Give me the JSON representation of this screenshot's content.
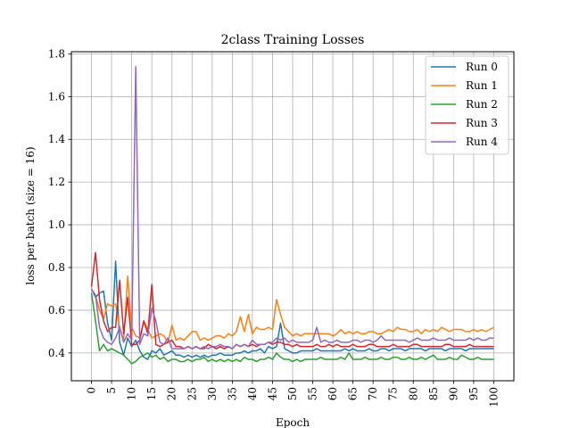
{
  "chart_data": {
    "type": "line",
    "title": "2class Training Losses",
    "xlabel": "Epoch",
    "ylabel": "loss per batch (size = 16)",
    "xlim": [
      -5,
      105
    ],
    "ylim": [
      0.27,
      1.81
    ],
    "xticks": [
      0,
      5,
      10,
      15,
      20,
      25,
      30,
      35,
      40,
      45,
      50,
      55,
      60,
      65,
      70,
      75,
      80,
      85,
      90,
      95,
      100
    ],
    "yticks": [
      0.4,
      0.6,
      0.8,
      1.0,
      1.2,
      1.4,
      1.6,
      1.8
    ],
    "ytick_labels": [
      "0.4",
      "0.6",
      "0.8",
      "1.0",
      "1.2",
      "1.4",
      "1.6",
      "1.8"
    ],
    "grid": true,
    "legend_position": "top-right",
    "series": [
      {
        "name": "Run 0",
        "color": "#1f77b4",
        "values": [
          0.7,
          0.66,
          0.68,
          0.69,
          0.54,
          0.46,
          0.83,
          0.45,
          0.39,
          0.47,
          0.43,
          0.46,
          0.41,
          0.38,
          0.37,
          0.41,
          0.4,
          0.42,
          0.39,
          0.4,
          0.41,
          0.39,
          0.39,
          0.38,
          0.39,
          0.38,
          0.39,
          0.38,
          0.39,
          0.38,
          0.39,
          0.39,
          0.4,
          0.39,
          0.39,
          0.39,
          0.4,
          0.4,
          0.41,
          0.4,
          0.41,
          0.41,
          0.42,
          0.4,
          0.43,
          0.42,
          0.43,
          0.54,
          0.42,
          0.41,
          0.4,
          0.4,
          0.41,
          0.41,
          0.41,
          0.41,
          0.42,
          0.41,
          0.41,
          0.41,
          0.41,
          0.41,
          0.41,
          0.42,
          0.41,
          0.42,
          0.41,
          0.41,
          0.41,
          0.42,
          0.41,
          0.41,
          0.42,
          0.42,
          0.41,
          0.42,
          0.42,
          0.42,
          0.41,
          0.42,
          0.42,
          0.42,
          0.42,
          0.41,
          0.42,
          0.42,
          0.42,
          0.42,
          0.41,
          0.42,
          0.42,
          0.42,
          0.42,
          0.41,
          0.42,
          0.42,
          0.42,
          0.42,
          0.42,
          0.42,
          0.42
        ]
      },
      {
        "name": "Run 1",
        "color": "#ff7f0e",
        "values": [
          0.7,
          0.67,
          0.6,
          0.56,
          0.63,
          0.62,
          0.63,
          0.52,
          0.46,
          0.76,
          0.52,
          0.48,
          0.47,
          0.55,
          0.51,
          0.47,
          0.48,
          0.49,
          0.48,
          0.45,
          0.53,
          0.46,
          0.47,
          0.46,
          0.48,
          0.5,
          0.5,
          0.46,
          0.47,
          0.46,
          0.47,
          0.48,
          0.48,
          0.47,
          0.49,
          0.48,
          0.5,
          0.57,
          0.5,
          0.58,
          0.49,
          0.52,
          0.51,
          0.51,
          0.52,
          0.51,
          0.65,
          0.58,
          0.52,
          0.5,
          0.48,
          0.49,
          0.48,
          0.49,
          0.49,
          0.49,
          0.49,
          0.49,
          0.49,
          0.49,
          0.48,
          0.49,
          0.51,
          0.49,
          0.5,
          0.49,
          0.5,
          0.49,
          0.49,
          0.5,
          0.5,
          0.49,
          0.49,
          0.5,
          0.51,
          0.5,
          0.52,
          0.51,
          0.51,
          0.5,
          0.5,
          0.51,
          0.49,
          0.51,
          0.5,
          0.51,
          0.5,
          0.52,
          0.51,
          0.5,
          0.51,
          0.51,
          0.51,
          0.5,
          0.5,
          0.51,
          0.5,
          0.51,
          0.5,
          0.51,
          0.52
        ]
      },
      {
        "name": "Run 2",
        "color": "#2ca02c",
        "values": [
          0.68,
          0.55,
          0.41,
          0.44,
          0.41,
          0.42,
          0.41,
          0.4,
          0.39,
          0.37,
          0.35,
          0.36,
          0.38,
          0.39,
          0.4,
          0.38,
          0.39,
          0.37,
          0.38,
          0.36,
          0.37,
          0.37,
          0.36,
          0.36,
          0.37,
          0.36,
          0.37,
          0.37,
          0.38,
          0.36,
          0.37,
          0.36,
          0.37,
          0.36,
          0.37,
          0.36,
          0.37,
          0.36,
          0.38,
          0.37,
          0.37,
          0.36,
          0.37,
          0.37,
          0.38,
          0.37,
          0.4,
          0.38,
          0.37,
          0.37,
          0.36,
          0.37,
          0.36,
          0.37,
          0.37,
          0.37,
          0.37,
          0.38,
          0.37,
          0.37,
          0.37,
          0.37,
          0.38,
          0.37,
          0.4,
          0.37,
          0.37,
          0.37,
          0.38,
          0.37,
          0.37,
          0.37,
          0.38,
          0.37,
          0.37,
          0.38,
          0.38,
          0.37,
          0.37,
          0.38,
          0.37,
          0.37,
          0.38,
          0.37,
          0.38,
          0.39,
          0.37,
          0.37,
          0.37,
          0.38,
          0.37,
          0.37,
          0.39,
          0.38,
          0.37,
          0.37,
          0.38,
          0.37,
          0.37,
          0.37,
          0.37
        ]
      },
      {
        "name": "Run 3",
        "color": "#d62728",
        "values": [
          0.71,
          0.87,
          0.65,
          0.55,
          0.5,
          0.52,
          0.52,
          0.74,
          0.49,
          0.66,
          0.44,
          0.44,
          0.46,
          0.55,
          0.49,
          0.72,
          0.44,
          0.43,
          0.44,
          0.45,
          0.46,
          0.43,
          0.43,
          0.42,
          0.43,
          0.42,
          0.43,
          0.42,
          0.42,
          0.44,
          0.43,
          0.42,
          0.43,
          0.42,
          0.43,
          0.42,
          0.44,
          0.43,
          0.44,
          0.43,
          0.44,
          0.43,
          0.44,
          0.44,
          0.45,
          0.44,
          0.45,
          0.45,
          0.44,
          0.44,
          0.43,
          0.44,
          0.43,
          0.43,
          0.43,
          0.43,
          0.44,
          0.43,
          0.43,
          0.44,
          0.43,
          0.44,
          0.43,
          0.43,
          0.43,
          0.44,
          0.43,
          0.43,
          0.43,
          0.44,
          0.44,
          0.43,
          0.43,
          0.43,
          0.43,
          0.44,
          0.43,
          0.43,
          0.43,
          0.43,
          0.44,
          0.44,
          0.43,
          0.43,
          0.43,
          0.43,
          0.43,
          0.43,
          0.44,
          0.44,
          0.43,
          0.43,
          0.43,
          0.43,
          0.44,
          0.43,
          0.43,
          0.43,
          0.43,
          0.43,
          0.43
        ]
      },
      {
        "name": "Run 4",
        "color": "#9467bd",
        "values": [
          0.7,
          0.67,
          0.52,
          0.47,
          0.45,
          0.44,
          0.47,
          0.52,
          0.45,
          0.49,
          0.46,
          1.74,
          0.44,
          0.49,
          0.48,
          0.61,
          0.55,
          0.45,
          0.44,
          0.47,
          0.42,
          0.42,
          0.42,
          0.42,
          0.43,
          0.42,
          0.43,
          0.42,
          0.43,
          0.42,
          0.43,
          0.43,
          0.44,
          0.43,
          0.43,
          0.42,
          0.44,
          0.43,
          0.44,
          0.43,
          0.46,
          0.44,
          0.44,
          0.44,
          0.45,
          0.45,
          0.47,
          0.46,
          0.47,
          0.45,
          0.46,
          0.45,
          0.45,
          0.45,
          0.45,
          0.46,
          0.52,
          0.45,
          0.46,
          0.45,
          0.45,
          0.46,
          0.45,
          0.45,
          0.45,
          0.46,
          0.46,
          0.45,
          0.46,
          0.46,
          0.45,
          0.46,
          0.48,
          0.46,
          0.46,
          0.46,
          0.46,
          0.46,
          0.46,
          0.45,
          0.46,
          0.47,
          0.46,
          0.46,
          0.46,
          0.47,
          0.46,
          0.46,
          0.46,
          0.47,
          0.46,
          0.46,
          0.46,
          0.46,
          0.47,
          0.46,
          0.47,
          0.46,
          0.46,
          0.47,
          0.47
        ]
      }
    ]
  }
}
